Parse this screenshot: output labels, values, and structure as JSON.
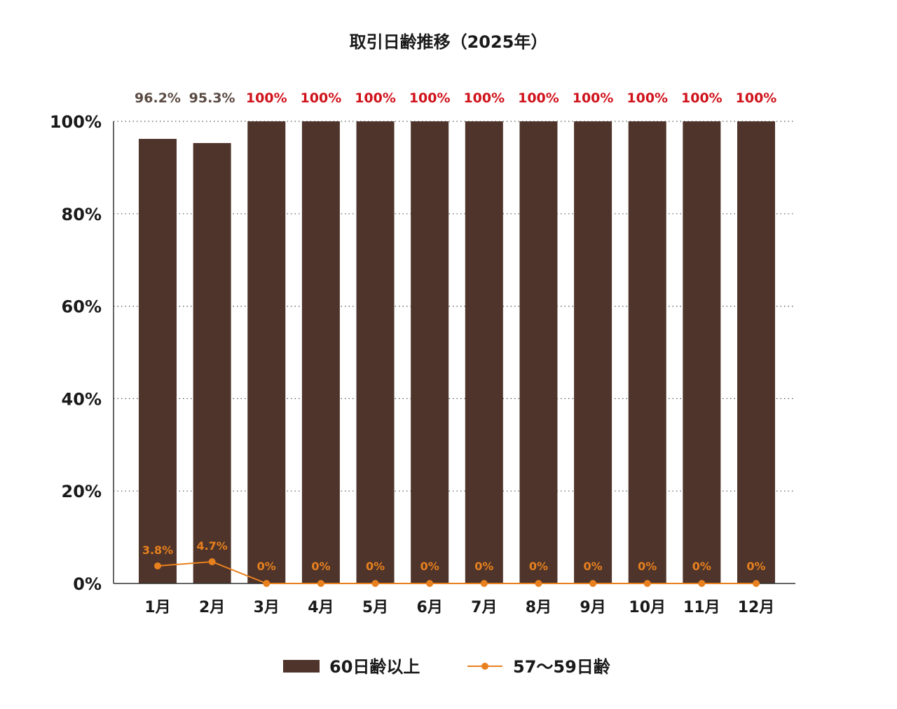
{
  "chart_data": {
    "type": "bar",
    "title": "取引日齢推移（2025年）",
    "categories": [
      "1月",
      "2月",
      "3月",
      "4月",
      "5月",
      "6月",
      "7月",
      "8月",
      "9月",
      "10月",
      "11月",
      "12月"
    ],
    "ylim": [
      0,
      100
    ],
    "yticks": [
      0,
      20,
      40,
      60,
      80,
      100
    ],
    "ytick_labels": [
      "0%",
      "20%",
      "40%",
      "60%",
      "80%",
      "100%"
    ],
    "grid": true,
    "legend_position": "bottom",
    "series": [
      {
        "name": "60日齢以上",
        "type": "bar",
        "color": "#4e342a",
        "values": [
          96.2,
          95.3,
          100,
          100,
          100,
          100,
          100,
          100,
          100,
          100,
          100,
          100
        ],
        "labels": [
          "96.2%",
          "95.3%",
          "100%",
          "100%",
          "100%",
          "100%",
          "100%",
          "100%",
          "100%",
          "100%",
          "100%",
          "100%"
        ],
        "label_colors": [
          "#5a4a42",
          "#5a4a42",
          "#d0121b",
          "#d0121b",
          "#d0121b",
          "#d0121b",
          "#d0121b",
          "#d0121b",
          "#d0121b",
          "#d0121b",
          "#d0121b",
          "#d0121b"
        ]
      },
      {
        "name": "57〜59日齢",
        "type": "line",
        "color": "#e8801e",
        "values": [
          3.8,
          4.7,
          0,
          0,
          0,
          0,
          0,
          0,
          0,
          0,
          0,
          0
        ],
        "labels": [
          "3.8%",
          "4.7%",
          "0%",
          "0%",
          "0%",
          "0%",
          "0%",
          "0%",
          "0%",
          "0%",
          "0%",
          "0%"
        ]
      }
    ]
  }
}
